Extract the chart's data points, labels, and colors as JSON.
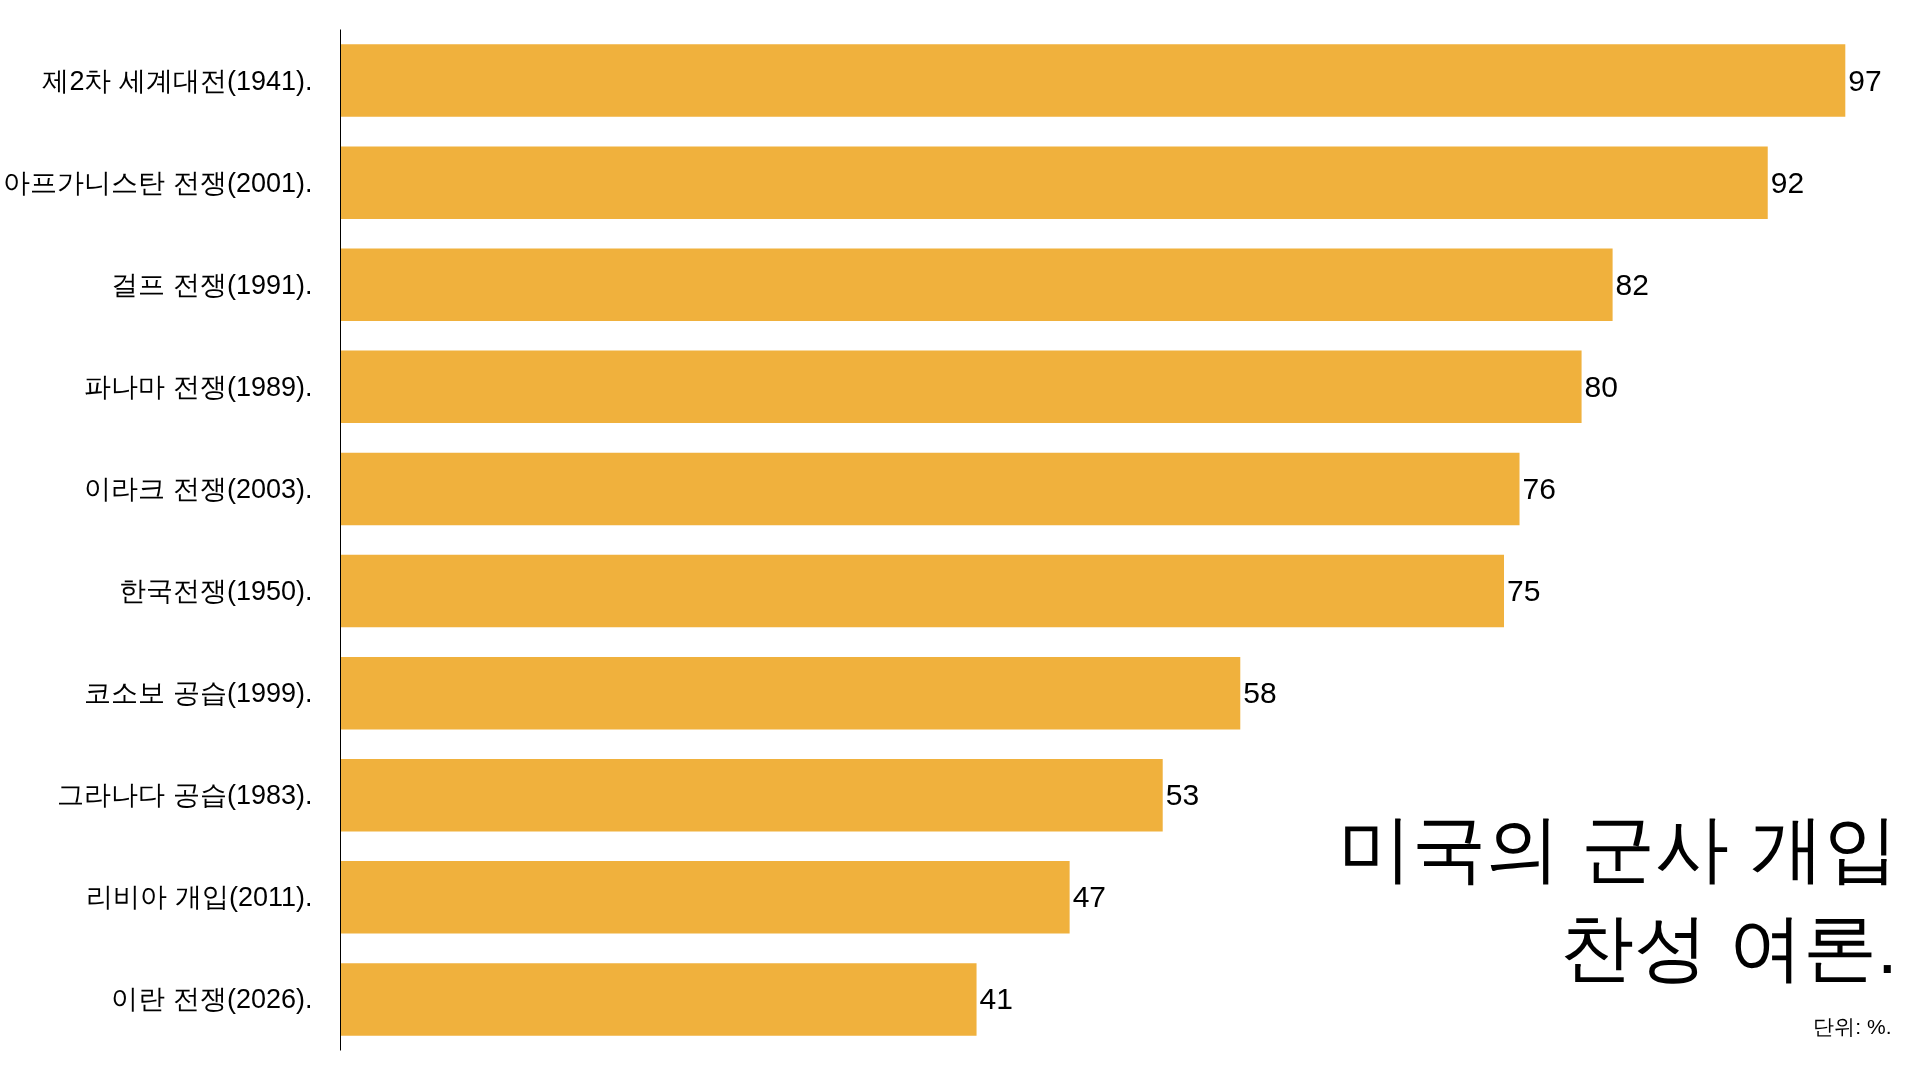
{
  "chart_data": {
    "type": "bar",
    "orientation": "horizontal",
    "title": "미국의 군사 개입\n찬성 여론.",
    "categories": [
      "제2차 세계대전(1941).",
      "아프가니스탄 전쟁(2001).",
      "걸프 전쟁(1991).",
      "파나마 전쟁(1989).",
      "이라크 전쟁(2003).",
      "한국전쟁(1950).",
      "코소보 공습(1999).",
      "그라나다 공습(1983).",
      "리비아 개입(2011).",
      "이란 전쟁(2026)."
    ],
    "values": [
      97,
      92,
      82,
      80,
      76,
      75,
      58,
      53,
      47,
      41
    ],
    "color": "#f0b13d",
    "data_labels": true,
    "annotations": [
      "단위: %."
    ]
  }
}
